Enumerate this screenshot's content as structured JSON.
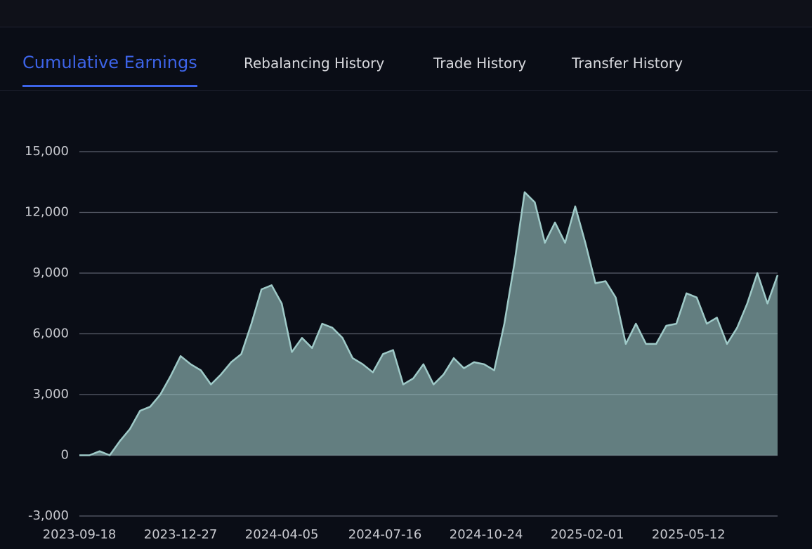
{
  "tabs": [
    "Cumulative Earnings",
    "Rebalancing History",
    "Trade History",
    "Transfer History"
  ],
  "active_tab": 0,
  "chart_data": {
    "type": "area",
    "x": [
      "2023-09-18",
      "2023-09-28",
      "2023-10-08",
      "2023-10-18",
      "2023-10-28",
      "2023-11-07",
      "2023-11-17",
      "2023-11-27",
      "2023-12-07",
      "2023-12-17",
      "2023-12-27",
      "2024-01-06",
      "2024-01-16",
      "2024-01-26",
      "2024-02-05",
      "2024-02-15",
      "2024-02-25",
      "2024-03-06",
      "2024-03-16",
      "2024-03-26",
      "2024-04-05",
      "2024-04-15",
      "2024-04-25",
      "2024-05-05",
      "2024-05-15",
      "2024-05-25",
      "2024-06-04",
      "2024-06-14",
      "2024-06-24",
      "2024-07-04",
      "2024-07-14",
      "2024-07-24",
      "2024-08-03",
      "2024-08-13",
      "2024-08-23",
      "2024-09-02",
      "2024-09-12",
      "2024-09-22",
      "2024-10-02",
      "2024-10-12",
      "2024-10-22",
      "2024-11-01",
      "2024-11-11",
      "2024-11-21",
      "2024-12-01",
      "2024-12-11",
      "2024-12-21",
      "2024-12-31",
      "2025-01-10",
      "2025-01-20",
      "2025-01-30",
      "2025-02-09",
      "2025-02-19",
      "2025-03-01",
      "2025-03-11",
      "2025-03-21",
      "2025-03-31",
      "2025-04-10",
      "2025-04-20",
      "2025-04-30",
      "2025-05-10",
      "2025-05-20",
      "2025-05-30",
      "2025-06-09",
      "2025-06-19",
      "2025-06-29",
      "2025-07-09",
      "2025-07-19",
      "2025-07-29",
      "2025-08-08"
    ],
    "values": [
      0,
      0,
      200,
      0,
      700,
      1300,
      2200,
      2400,
      3000,
      3900,
      4900,
      4500,
      4200,
      3500,
      4000,
      4600,
      5000,
      6500,
      8200,
      8400,
      7500,
      5100,
      5800,
      5300,
      6500,
      6300,
      5800,
      4800,
      4500,
      4100,
      5000,
      5200,
      3500,
      3800,
      4500,
      3500,
      4000,
      4800,
      4300,
      4600,
      4500,
      4200,
      6500,
      9500,
      13000,
      12500,
      10500,
      11500,
      10500,
      12300,
      10500,
      8500,
      8600,
      7800,
      5500,
      6500,
      5500,
      5500,
      6400,
      6500,
      8000,
      7800,
      6500,
      6800,
      5500,
      6300,
      7500,
      9000,
      7500,
      8900
    ],
    "color": "#9fcac8",
    "xlim": [
      "2023-09-18",
      "2025-08-08"
    ],
    "xticks": [
      "2023-09-18",
      "2023-12-27",
      "2024-04-05",
      "2024-07-16",
      "2024-10-24",
      "2025-02-01",
      "2025-05-12"
    ],
    "ylim": [
      -3000,
      15000
    ],
    "yticks": [
      {
        "value": -3000,
        "label": "-3,000"
      },
      0,
      {
        "value": 3000,
        "label": "3,000"
      },
      {
        "value": 6000,
        "label": "6,000"
      },
      {
        "value": 9000,
        "label": "9,000"
      },
      {
        "value": 12000,
        "label": "12,000"
      },
      {
        "value": 15000,
        "label": "15,000"
      }
    ],
    "grid": true
  }
}
